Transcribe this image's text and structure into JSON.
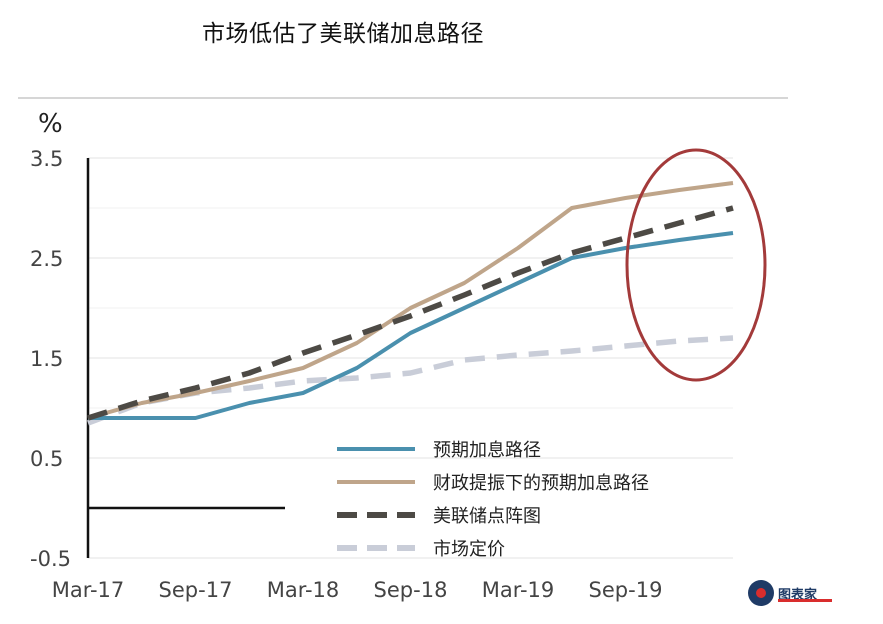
{
  "title": "市场低估了美联储加息路径",
  "watermark": "图表家",
  "chart_data": {
    "type": "line",
    "ylabel": "%",
    "ylim": [
      -0.5,
      3.5
    ],
    "yticks": [
      "3.5",
      "2.5",
      "1.5",
      "0.5",
      "-0.5"
    ],
    "ytick_values": [
      3.5,
      2.5,
      1.5,
      0.5,
      -0.5
    ],
    "xlabels": [
      "Mar-17",
      "Sep-17",
      "Mar-18",
      "Sep-18",
      "Mar-19",
      "Sep-19"
    ],
    "x": [
      0,
      1,
      2,
      3,
      4,
      5,
      6,
      7,
      8,
      9,
      10,
      11,
      12
    ],
    "grid": true,
    "legend_position": "bottom-center",
    "series": [
      {
        "name": "预期加息路径",
        "color": "#4a90ae",
        "style": "solid",
        "values": [
          0.9,
          0.9,
          0.9,
          1.05,
          1.15,
          1.4,
          1.75,
          2.0,
          2.25,
          2.5,
          2.6,
          2.68,
          2.75
        ]
      },
      {
        "name": "财政提振下的预期加息路径",
        "color": "#bfa58a",
        "style": "solid",
        "values": [
          0.9,
          1.05,
          1.15,
          1.27,
          1.4,
          1.65,
          2.0,
          2.25,
          2.6,
          3.0,
          3.1,
          3.18,
          3.25
        ]
      },
      {
        "name": "美联储点阵图",
        "color": "#4d4a45",
        "style": "dashed",
        "values": [
          0.9,
          1.07,
          1.2,
          1.35,
          1.55,
          1.73,
          1.92,
          2.13,
          2.35,
          2.55,
          2.7,
          2.85,
          3.0
        ]
      },
      {
        "name": "市场定价",
        "color": "#c9cdd8",
        "style": "dashed",
        "values": [
          0.85,
          1.05,
          1.15,
          1.2,
          1.27,
          1.3,
          1.35,
          1.48,
          1.53,
          1.57,
          1.62,
          1.67,
          1.7
        ]
      }
    ],
    "annotation": "red ellipse highlighting divergence around Sep-19"
  }
}
